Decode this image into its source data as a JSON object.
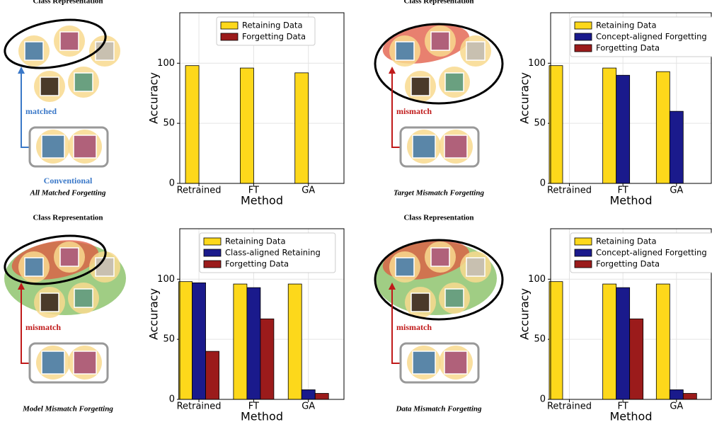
{
  "diagrams": [
    {
      "title": "Class Representation",
      "arrow_label": "matched",
      "method_label": "Conventional",
      "caption": "All Matched Forgetting"
    },
    {
      "title": "Class Representation",
      "arrow_label": "mismatch",
      "caption": "Target Mismatch Forgetting"
    },
    {
      "title": "Class Representation",
      "arrow_label": "mismatch",
      "caption": "Model Mismatch Forgetting"
    },
    {
      "title": "Class Representation",
      "arrow_label": "mismatch",
      "caption": "Data Mismatch Forgetting"
    }
  ],
  "chart_data": [
    {
      "type": "bar",
      "xlabel": "Method",
      "ylabel": "Accuracy",
      "categories": [
        "Retrained",
        "FT",
        "GA"
      ],
      "ylim": [
        0,
        142
      ],
      "yticks": [
        0,
        50,
        100
      ],
      "series": [
        {
          "name": "Retaining Data",
          "color": "#fdd81b",
          "values": [
            98,
            96,
            92
          ]
        },
        {
          "name": "Forgetting Data",
          "color": "#9b1b1b",
          "values": [
            0,
            0,
            0
          ]
        }
      ]
    },
    {
      "type": "bar",
      "xlabel": "Method",
      "ylabel": "Accuracy",
      "categories": [
        "Retrained",
        "FT",
        "GA"
      ],
      "ylim": [
        0,
        142
      ],
      "yticks": [
        0,
        50,
        100
      ],
      "series": [
        {
          "name": "Retaining Data",
          "color": "#fdd81b",
          "values": [
            98,
            96,
            93
          ]
        },
        {
          "name": "Concept-aligned Forgetting",
          "color": "#1a1a8c",
          "values": [
            0,
            90,
            60
          ]
        },
        {
          "name": "Forgetting Data",
          "color": "#9b1b1b",
          "values": [
            0,
            0,
            0
          ]
        }
      ]
    },
    {
      "type": "bar",
      "xlabel": "Method",
      "ylabel": "Accuracy",
      "categories": [
        "Retrained",
        "FT",
        "GA"
      ],
      "ylim": [
        0,
        142
      ],
      "yticks": [
        0,
        50,
        100
      ],
      "series": [
        {
          "name": "Retaining Data",
          "color": "#fdd81b",
          "values": [
            98,
            96,
            96
          ]
        },
        {
          "name": "Class-aligned Retaining",
          "color": "#1a1a8c",
          "values": [
            97,
            93,
            8
          ]
        },
        {
          "name": "Forgetting Data",
          "color": "#9b1b1b",
          "values": [
            40,
            67,
            5
          ]
        }
      ]
    },
    {
      "type": "bar",
      "xlabel": "Method",
      "ylabel": "Accuracy",
      "categories": [
        "Retrained",
        "FT",
        "GA"
      ],
      "ylim": [
        0,
        142
      ],
      "yticks": [
        0,
        50,
        100
      ],
      "series": [
        {
          "name": "Retaining Data",
          "color": "#fdd81b",
          "values": [
            98,
            96,
            96
          ]
        },
        {
          "name": "Concept-aligned Forgetting",
          "color": "#1a1a8c",
          "values": [
            0,
            93,
            8
          ]
        },
        {
          "name": "Forgetting Data",
          "color": "#9b1b1b",
          "values": [
            0,
            67,
            5
          ]
        }
      ]
    }
  ]
}
